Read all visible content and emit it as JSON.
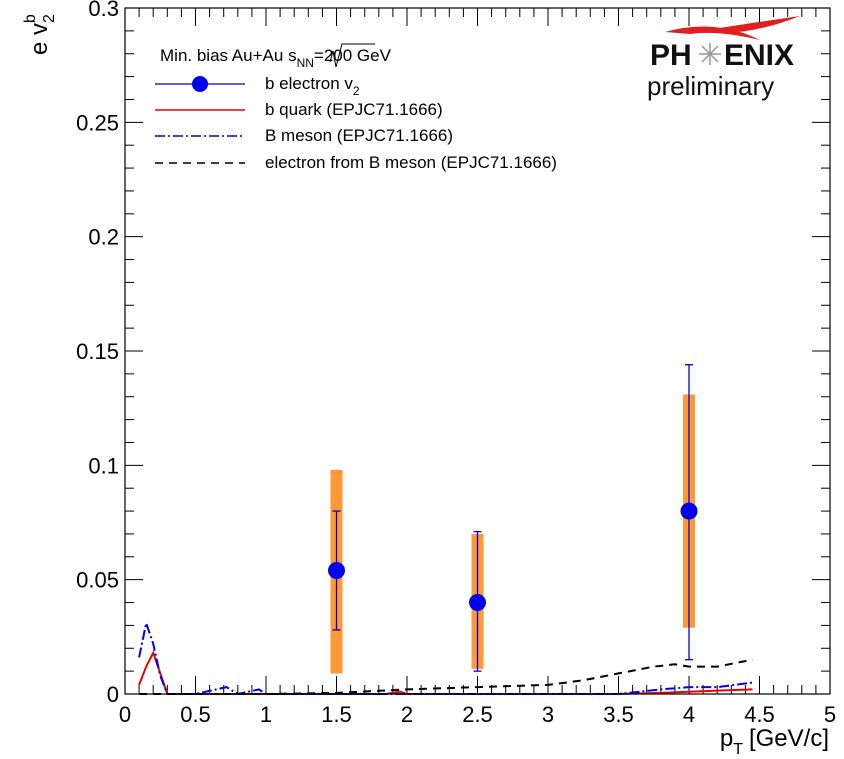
{
  "chart_data": {
    "type": "scatter",
    "xlabel": "p",
    "xlabel_sub": "T",
    "xlabel_unit": "[GeV/c]",
    "ylabel_prefix": "e v",
    "ylabel_sub": "2",
    "ylabel_sup": "b",
    "xlim": [
      0,
      5
    ],
    "ylim": [
      0,
      0.3
    ],
    "x_ticks": [
      0,
      0.5,
      1,
      1.5,
      2,
      2.5,
      3,
      3.5,
      4,
      4.5,
      5
    ],
    "x_tick_labels": [
      "0",
      "0.5",
      "1",
      "1.5",
      "2",
      "2.5",
      "3",
      "3.5",
      "4",
      "4.5",
      "5"
    ],
    "y_ticks": [
      0,
      0.05,
      0.1,
      0.15,
      0.2,
      0.25,
      0.3
    ],
    "y_tick_labels": [
      "0",
      "0.05",
      "0.1",
      "0.15",
      "0.2",
      "0.25",
      "0.3"
    ],
    "grid": false,
    "legend_position": "top-left",
    "legend_header_parts": [
      "Min. bias Au+Au ",
      "s",
      "NN",
      "=200 GeV"
    ],
    "series": [
      {
        "name": "b electron v",
        "name_sub": "2",
        "kind": "points",
        "color": "#0000ee",
        "x": [
          1.5,
          2.5,
          4.0
        ],
        "y": [
          0.054,
          0.04,
          0.08
        ],
        "stat_err_low": [
          0.028,
          0.01,
          0.015
        ],
        "stat_err_high": [
          0.08,
          0.071,
          0.144
        ],
        "sys_low": [
          0.009,
          0.011,
          0.029
        ],
        "sys_high": [
          0.098,
          0.07,
          0.131
        ],
        "sys_color": "#ff9933"
      },
      {
        "name": "b quark (EPJC71.1666)",
        "kind": "line",
        "style": "solid",
        "color": "#ee0000",
        "x": [
          0.1,
          0.15,
          0.2,
          0.25,
          0.3,
          0.5,
          1.0,
          1.5,
          1.85,
          1.95,
          2.0,
          3.0,
          3.5,
          3.8,
          4.0,
          4.2,
          4.45
        ],
        "y": [
          0.004,
          0.012,
          0.018,
          0.009,
          0.0,
          0.0,
          0.0,
          0.0,
          0.0,
          0.001,
          0.0,
          0.0,
          0.0,
          0.0005,
          0.001,
          0.0015,
          0.002
        ]
      },
      {
        "name": "B meson (EPJC71.1666)",
        "kind": "line",
        "style": "dashdot",
        "color": "#0000ee",
        "x": [
          0.1,
          0.15,
          0.2,
          0.25,
          0.3,
          0.5,
          0.72,
          0.8,
          0.95,
          1.0,
          1.5,
          2.0,
          2.5,
          3.0,
          3.5,
          3.8,
          4.0,
          4.2,
          4.45
        ],
        "y": [
          0.016,
          0.031,
          0.022,
          0.008,
          0.0,
          0.0,
          0.003,
          0.0,
          0.002,
          0.0,
          0.0,
          0.0,
          0.0,
          0.0,
          0.0,
          0.002,
          0.003,
          0.003,
          0.005
        ]
      },
      {
        "name": "electron from B meson (EPJC71.1666)",
        "kind": "line",
        "style": "dashed",
        "color": "#000000",
        "x": [
          0.1,
          0.5,
          1.0,
          1.5,
          2.0,
          2.5,
          3.0,
          3.25,
          3.5,
          3.75,
          3.9,
          4.0,
          4.2,
          4.45
        ],
        "y": [
          0.0,
          0.0,
          0.0,
          0.0005,
          0.002,
          0.003,
          0.004,
          0.006,
          0.009,
          0.012,
          0.013,
          0.012,
          0.012,
          0.015
        ]
      }
    ]
  },
  "logo": {
    "name_left": "PH",
    "name_right": "ENIX",
    "subtitle": "preliminary"
  }
}
